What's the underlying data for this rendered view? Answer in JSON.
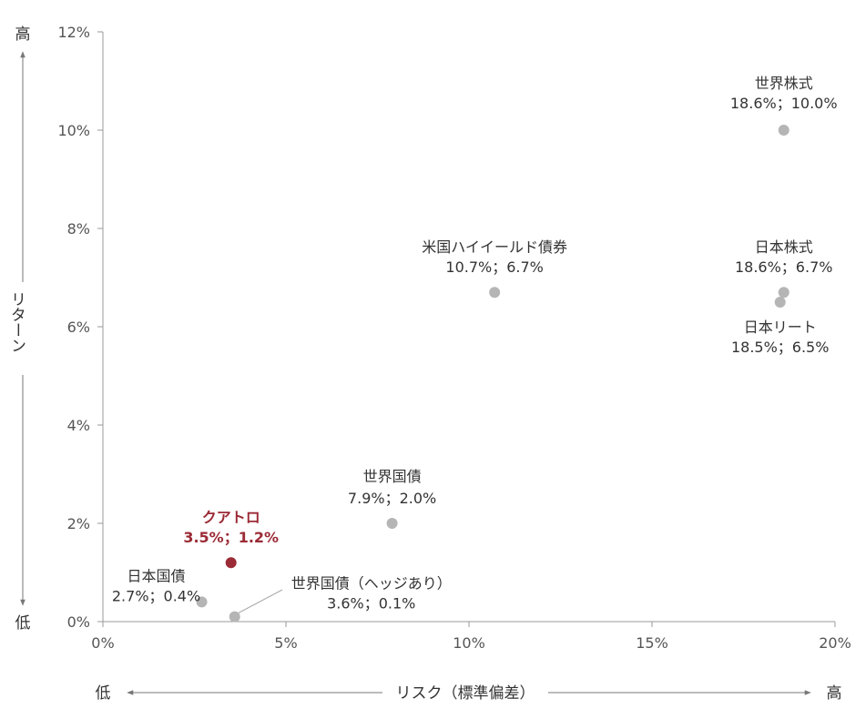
{
  "chart_data": {
    "type": "scatter",
    "xlabel": "リスク（標準偏差）",
    "ylabel": "リターン",
    "xlim": [
      0,
      20
    ],
    "ylim": [
      0,
      12
    ],
    "x_ticks": [
      "0%",
      "5%",
      "10%",
      "15%",
      "20%"
    ],
    "y_ticks": [
      "0%",
      "2%",
      "4%",
      "6%",
      "8%",
      "10%",
      "12%"
    ],
    "x_low": "低",
    "x_high": "高",
    "y_low": "低",
    "y_high": "高",
    "grid": false,
    "colors": {
      "default": "#b5b5b5",
      "highlight": "#9b2b36",
      "axis": "#9a9a9a"
    },
    "points": [
      {
        "name": "世界株式",
        "label": "18.6%；10.0%",
        "x": 18.6,
        "y": 10.0,
        "highlight": false
      },
      {
        "name": "日本株式",
        "label": "18.6%；6.7%",
        "x": 18.6,
        "y": 6.7,
        "highlight": false
      },
      {
        "name": "日本リート",
        "label": "18.5%；6.5%",
        "x": 18.5,
        "y": 6.5,
        "highlight": false
      },
      {
        "name": "米国ハイイールド債券",
        "label": "10.7%；6.7%",
        "x": 10.7,
        "y": 6.7,
        "highlight": false
      },
      {
        "name": "世界国債",
        "label": "7.9%；2.0%",
        "x": 7.9,
        "y": 2.0,
        "highlight": false
      },
      {
        "name": "クアトロ",
        "label": "3.5%；1.2%",
        "x": 3.5,
        "y": 1.2,
        "highlight": true
      },
      {
        "name": "日本国債",
        "label": "2.7%；0.4%",
        "x": 2.7,
        "y": 0.4,
        "highlight": false
      },
      {
        "name": "世界国債（ヘッジあり）",
        "label": "3.6%；0.1%",
        "x": 3.6,
        "y": 0.1,
        "highlight": false
      }
    ]
  }
}
